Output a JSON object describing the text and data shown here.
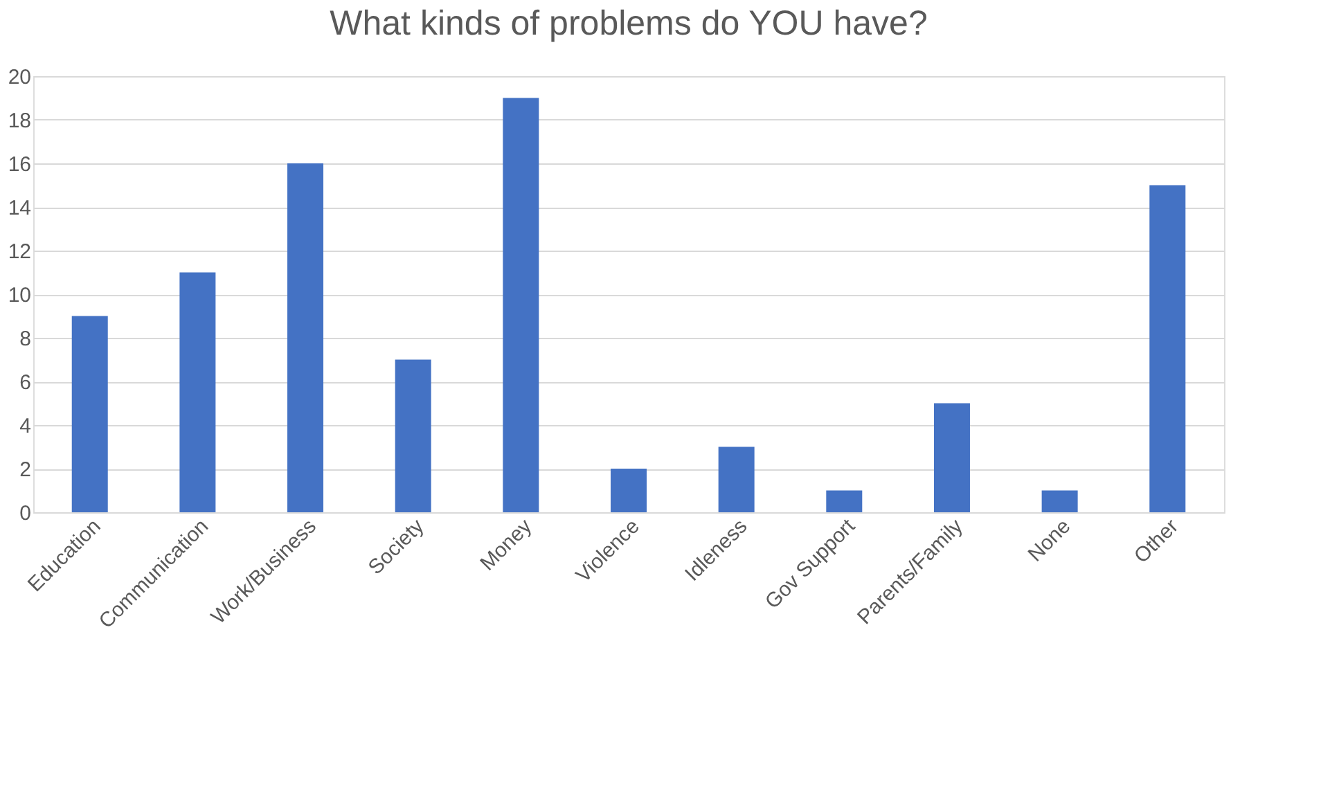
{
  "chart_data": {
    "type": "bar",
    "title": "What kinds of problems do YOU have?",
    "categories": [
      "Education",
      "Communication",
      "Work/Business",
      "Society",
      "Money",
      "Violence",
      "Idleness",
      "Gov Support",
      "Parents/Family",
      "None",
      "Other"
    ],
    "values": [
      9,
      11,
      16,
      7,
      19,
      2,
      3,
      1,
      5,
      1,
      15
    ],
    "color": "#4472c4",
    "ylim": [
      0,
      20
    ],
    "yticks": [
      0,
      2,
      4,
      6,
      8,
      10,
      12,
      14,
      16,
      18,
      20
    ],
    "grid": "y"
  }
}
